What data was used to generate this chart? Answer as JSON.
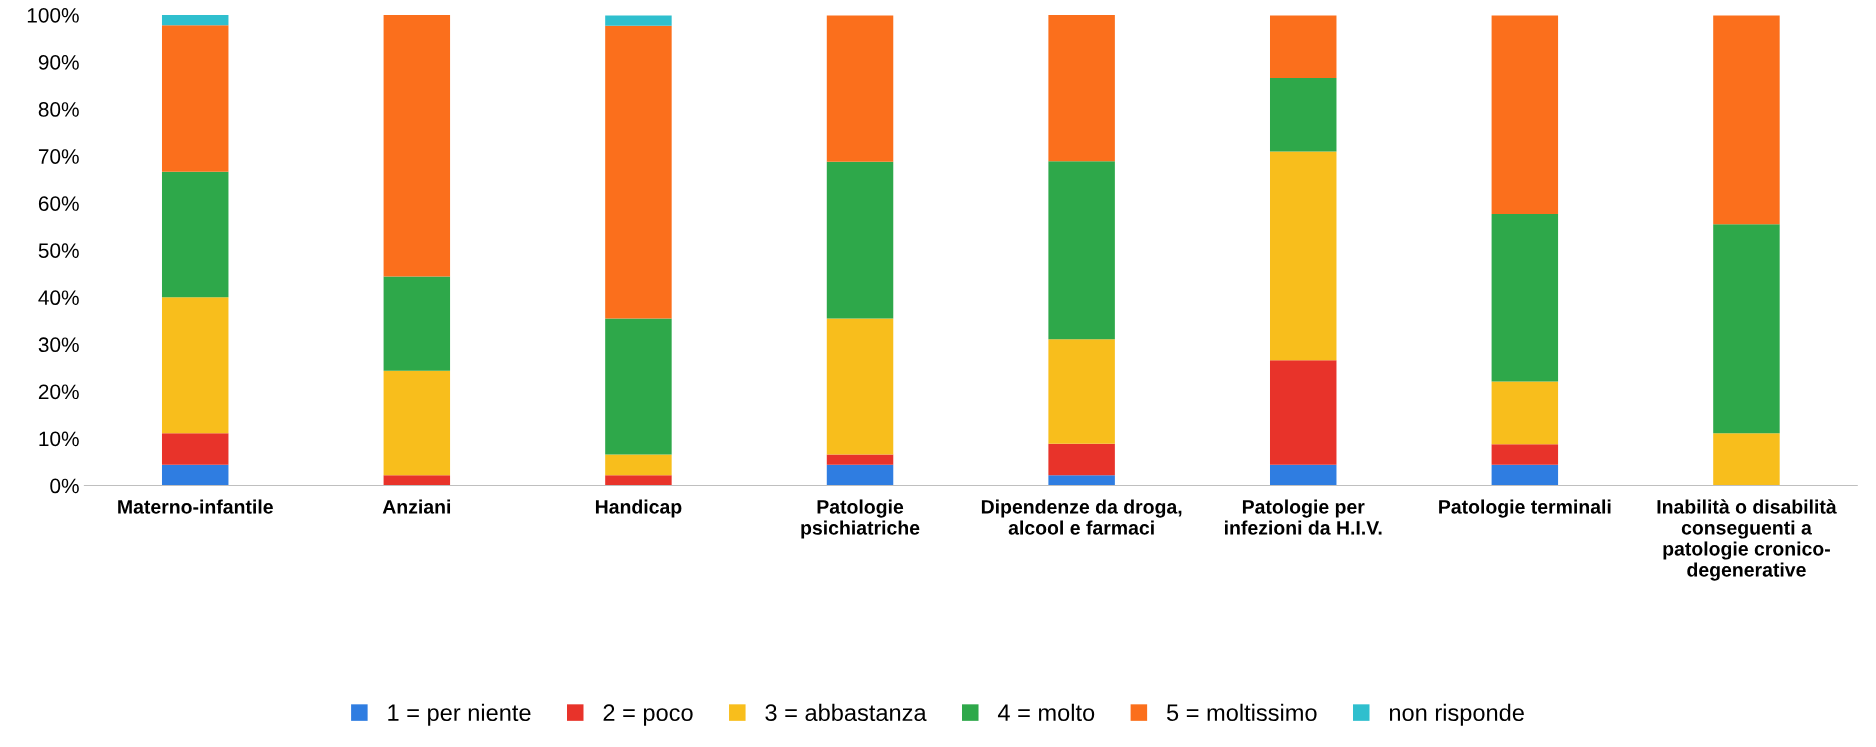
{
  "chart_data": {
    "type": "bar",
    "stacked": true,
    "categories": [
      "Materno-infantile",
      "Anziani",
      "Handicap",
      "Patologie\npsichiatriche",
      "Dipendenze da droga,\nalcool e farmaci",
      "Patologie per\ninfezioni da H.I.V.",
      "Patologie terminali",
      "Inabilità o disabilità\nconseguenti a\npatologie cronico-\ndegenerative"
    ],
    "series": [
      {
        "name": "1 = per niente",
        "color": "#2f7de1",
        "values": [
          4.4,
          0,
          0,
          4.4,
          2.2,
          4.4,
          4.4,
          0
        ]
      },
      {
        "name": "2 = poco",
        "color": "#e8332a",
        "values": [
          6.7,
          2.2,
          2.2,
          2.2,
          6.7,
          22.2,
          4.4,
          0
        ]
      },
      {
        "name": "3 = abbastanza",
        "color": "#f8be1c",
        "values": [
          28.9,
          22.2,
          4.4,
          28.9,
          22.2,
          44.4,
          13.3,
          11.1
        ]
      },
      {
        "name": "4 = molto",
        "color": "#2ea84a",
        "values": [
          26.7,
          20,
          28.9,
          33.3,
          37.8,
          15.6,
          35.6,
          44.4
        ]
      },
      {
        "name": "5 = moltissimo",
        "color": "#fb6f1c",
        "values": [
          31.1,
          55.6,
          62.2,
          31.1,
          31.1,
          13.3,
          42.2,
          44.4
        ]
      },
      {
        "name": "non risponde",
        "color": "#2fbfce",
        "values": [
          2.2,
          0,
          2.2,
          0,
          0,
          0,
          0,
          0
        ]
      }
    ],
    "ylim": [
      0,
      100
    ],
    "yticks": [
      {
        "value": 0,
        "label": "0%"
      },
      {
        "value": 10,
        "label": "10%"
      },
      {
        "value": 20,
        "label": "20%"
      },
      {
        "value": 30,
        "label": "30%"
      },
      {
        "value": 40,
        "label": "40%"
      },
      {
        "value": 50,
        "label": "50%"
      },
      {
        "value": 60,
        "label": "60%"
      },
      {
        "value": 70,
        "label": "70%"
      },
      {
        "value": 80,
        "label": "80%"
      },
      {
        "value": 90,
        "label": "90%"
      },
      {
        "value": 100,
        "label": "100%"
      }
    ],
    "grid": false,
    "legend": "bottom"
  }
}
